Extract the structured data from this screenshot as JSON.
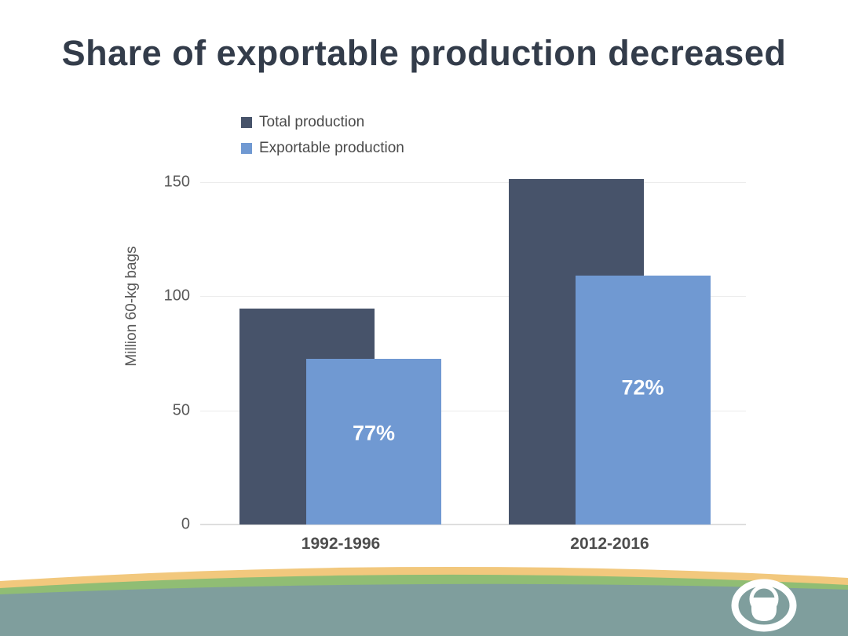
{
  "slide": {
    "title": "Share of exportable production decreased"
  },
  "chart_data": {
    "type": "bar",
    "title": "Share of exportable production decreased",
    "categories": [
      "1992-1996",
      "2012-2016"
    ],
    "series": [
      {
        "name": "Total production",
        "color": "#47536a",
        "values": [
          94.5,
          151.5
        ]
      },
      {
        "name": "Exportable production",
        "color": "#7099d2",
        "values": [
          72.5,
          109
        ],
        "bar_labels": [
          "77%",
          "72%"
        ]
      }
    ],
    "ylabel": "Million 60-kg bags",
    "xlabel": "",
    "yticks": [
      0,
      50,
      100,
      150
    ],
    "ylim": [
      0,
      150
    ],
    "legend_position": "top-left above plot",
    "grid": "faint horizontal gridlines at 50/100/150",
    "bar_style": "overlapped pairs, exportable drawn in front of total"
  },
  "footer": {
    "wave_colors": {
      "sand": "#f2c87d",
      "green": "#90bd74",
      "teal": "#7f9e9d"
    },
    "logo": "ico-circle-logo"
  }
}
